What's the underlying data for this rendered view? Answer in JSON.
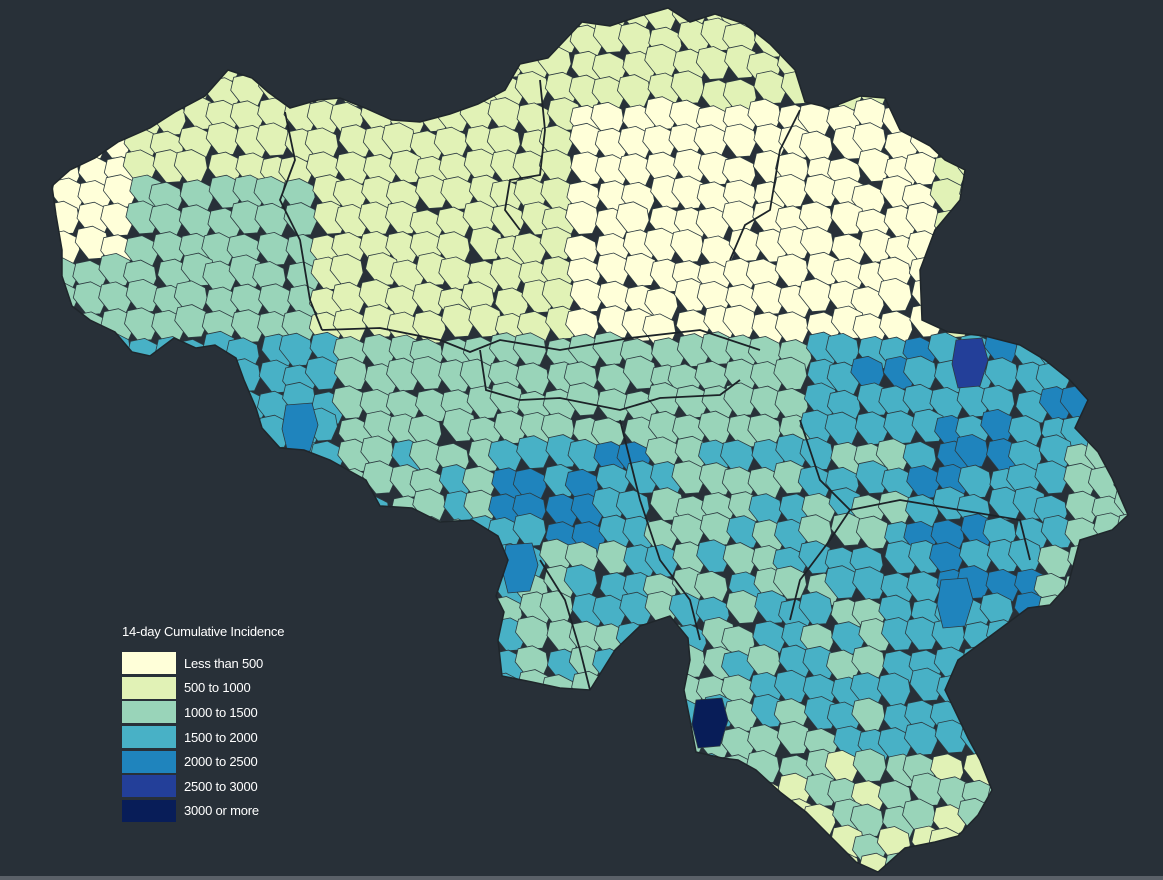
{
  "map": {
    "palette": {
      "background": "#283038",
      "border": "#2c3a40",
      "province_border": "#1f262b"
    }
  },
  "legend": {
    "title": "14-day Cumulative Incidence",
    "items": [
      {
        "label": "Less than 500",
        "color": "#ffffd9"
      },
      {
        "label": "500 to 1000",
        "color": "#e1f2b6"
      },
      {
        "label": "1000 to 1500",
        "color": "#99d4b9"
      },
      {
        "label": "1500 to 2000",
        "color": "#48b1c6"
      },
      {
        "label": "2000 to 2500",
        "color": "#1f84bd"
      },
      {
        "label": "2500 to 3000",
        "color": "#233f99"
      },
      {
        "label": "3000 or more",
        "color": "#081d58"
      }
    ]
  }
}
